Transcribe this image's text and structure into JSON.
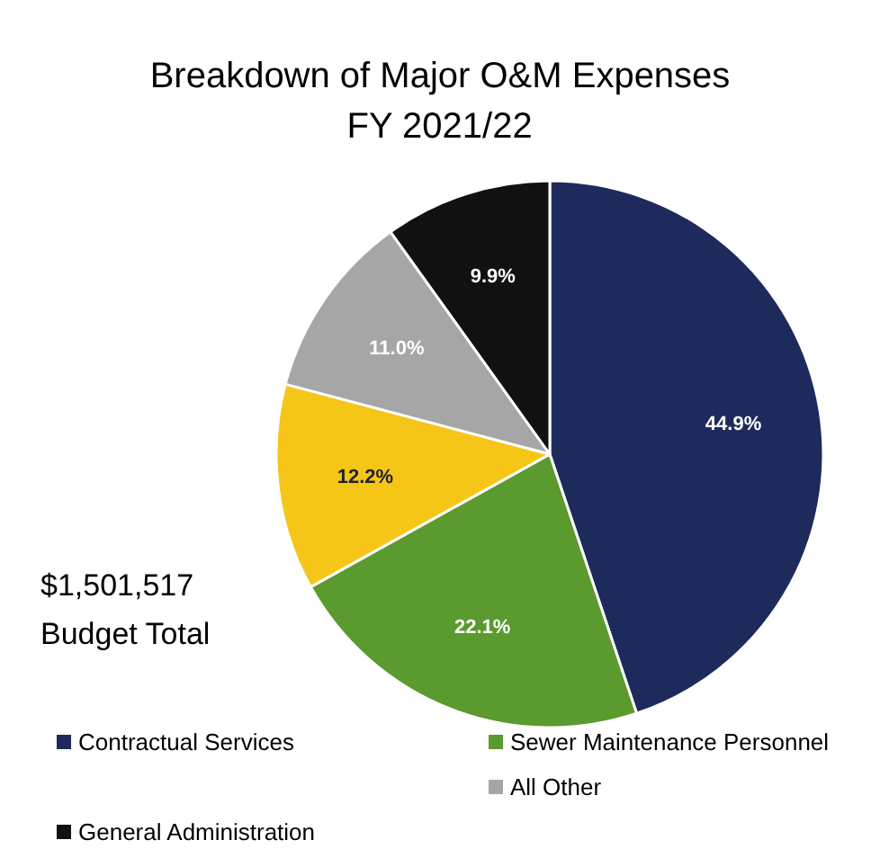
{
  "chart_data": {
    "type": "pie",
    "title": "Breakdown of Major O&M Expenses",
    "subtitle": "FY 2021/22",
    "categories": [
      "Contractual Services",
      "Sewer Maintenance Personnel",
      null,
      "All Other",
      "General Administration"
    ],
    "values": [
      44.9,
      22.1,
      12.2,
      11.0,
      9.9
    ],
    "colors": [
      "#1f2a5c",
      "#5a9a2e",
      "#f5c518",
      "#a6a6a6",
      "#111111"
    ],
    "value_labels": [
      "44.9%",
      "22.1%",
      "12.2%",
      "11.0%",
      "9.9%"
    ],
    "legend": "bottom",
    "annotations": [
      "$1,501,517\nBudget Total"
    ]
  }
}
